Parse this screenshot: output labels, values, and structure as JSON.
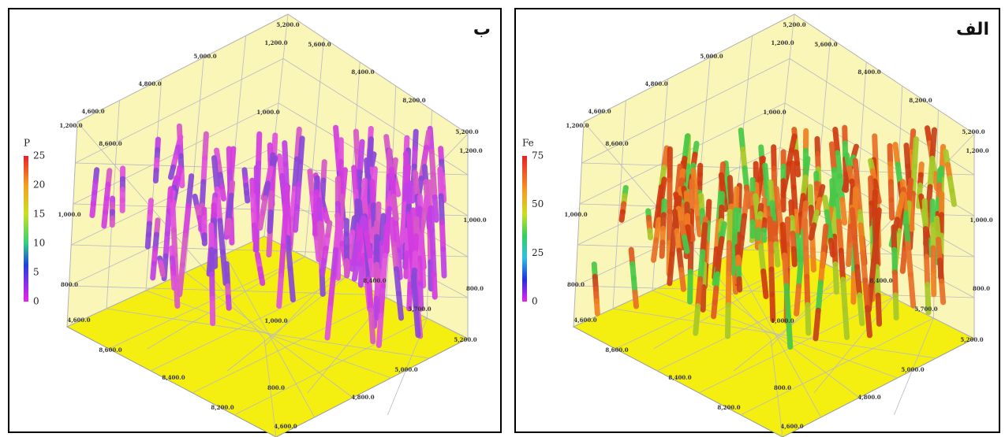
{
  "panels": [
    {
      "label": "ب",
      "colorbar": {
        "title": "P",
        "ticks": [
          "25",
          "20",
          "15",
          "10",
          "5",
          "0"
        ]
      },
      "axis_labels": [
        "5,200.0",
        "1,200.0",
        "5,600.0",
        "5,000.0",
        "8,400.0",
        "4,800.0",
        "8,200.0",
        "4,600.0",
        "1,000.0",
        "5,200.0",
        "1,200.0",
        "8,600.0",
        "1,200.0",
        "1,000.0",
        "1,000.0",
        "800.0",
        "800.0",
        "4,600.0",
        "8,600.0",
        "8,400.0",
        "8,200.0",
        "800.0",
        "4,800.0",
        "5,000.0",
        "5,200.0",
        "4,600.0",
        "1,000.0",
        "5,700.0",
        "8,400.0"
      ]
    },
    {
      "label": "الف",
      "colorbar": {
        "title": "Fe",
        "ticks": [
          "75",
          "50",
          "25",
          "0"
        ]
      },
      "axis_labels": [
        "5,200.0",
        "1,200.0",
        "5,600.0",
        "5,000.0",
        "8,400.0",
        "4,800.0",
        "8,200.0",
        "4,600.0",
        "1,000.0",
        "5,200.0",
        "1,200.0",
        "8,600.0",
        "1,200.0",
        "1,000.0",
        "1,000.0",
        "800.0",
        "800.0",
        "4,600.0",
        "8,600.0",
        "8,400.0",
        "8,200.0",
        "800.0",
        "4,800.0",
        "5,000.0",
        "5,200.0",
        "4,600.0",
        "1,000.0",
        "5,700.0",
        "8,400.0"
      ]
    }
  ]
}
